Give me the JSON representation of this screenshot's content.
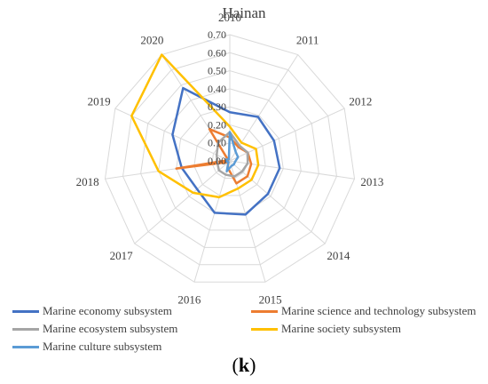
{
  "chart_data": {
    "type": "radar",
    "title": "Hainan",
    "categories": [
      "2010",
      "2011",
      "2012",
      "2013",
      "2014",
      "2015",
      "2016",
      "2017",
      "2018",
      "2019",
      "2020"
    ],
    "rlim": [
      0,
      0.7
    ],
    "ticks": [
      "0.00",
      "0.10",
      "0.20",
      "0.30",
      "0.40",
      "0.50",
      "0.60",
      "0.70"
    ],
    "series": [
      {
        "name": "Marine economy subsystem",
        "color": "#4472c4",
        "values": [
          0.27,
          0.29,
          0.27,
          0.28,
          0.28,
          0.31,
          0.3,
          0.24,
          0.27,
          0.35,
          0.48
        ]
      },
      {
        "name": "Marine science and technology subsystem",
        "color": "#ed7d31",
        "values": [
          0.13,
          0.09,
          0.11,
          0.12,
          0.13,
          0.13,
          0.04,
          0.01,
          0.3,
          0.01,
          0.21
        ]
      },
      {
        "name": "Marine ecosystem subsystem",
        "color": "#a5a5a5",
        "values": [
          0.16,
          0.1,
          0.11,
          0.1,
          0.09,
          0.09,
          0.08,
          0.08,
          0.07,
          0.08,
          0.12
        ]
      },
      {
        "name": "Marine society subsystem",
        "color": "#ffc000",
        "values": [
          0.19,
          0.12,
          0.16,
          0.16,
          0.16,
          0.16,
          0.21,
          0.27,
          0.4,
          0.6,
          0.7
        ]
      },
      {
        "name": "Marine culture subsystem",
        "color": "#5b9bd5",
        "values": [
          0.16,
          0.06,
          0.05,
          0.03,
          0.03,
          0.03,
          0.06,
          0.01,
          0.02,
          0.02,
          0.01
        ]
      }
    ]
  },
  "caption": "(k)"
}
